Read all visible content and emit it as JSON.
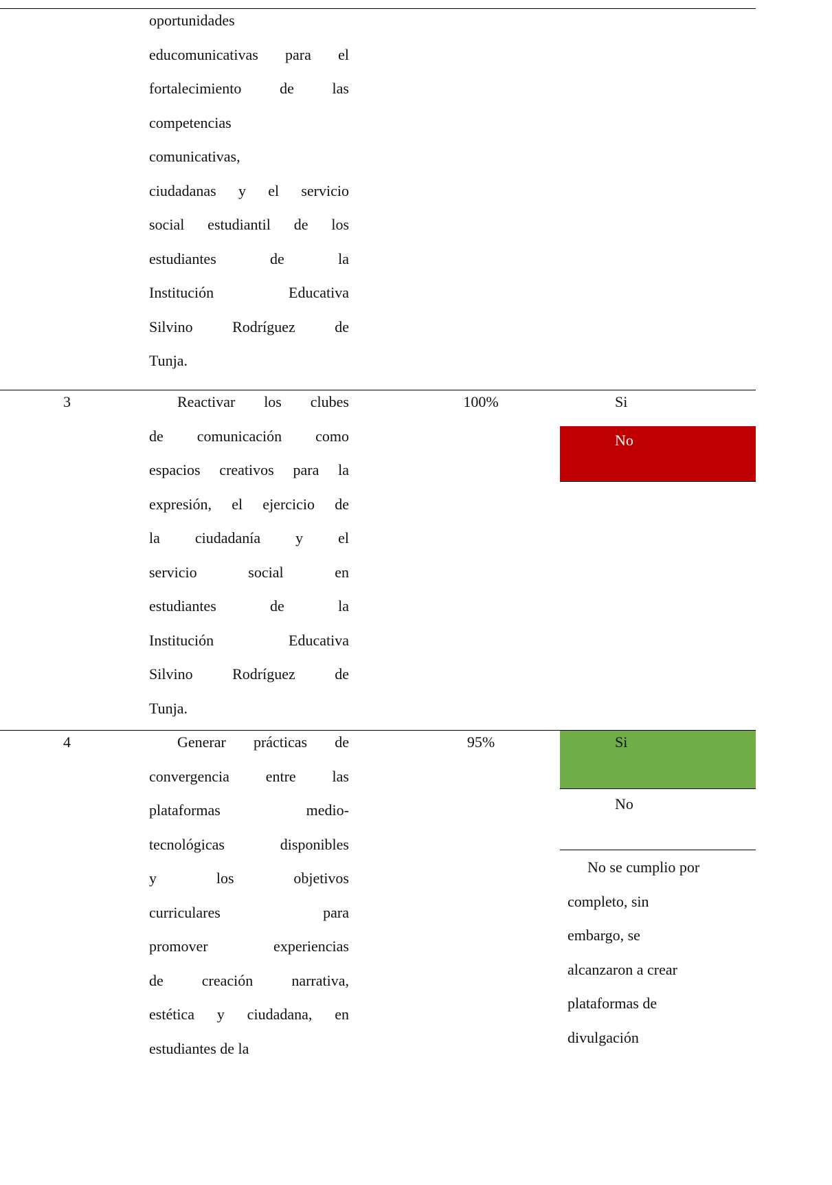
{
  "table": {
    "rows": [
      {
        "objective_lines": [
          "oportunidades",
          "educomunicativas para el",
          "fortalecimiento de las",
          "competencias",
          "comunicativas,",
          "ciudadanas y el servicio",
          "social estudiantil de los",
          "estudiantes de la",
          "Institución Educativa",
          "Silvino Rodríguez de",
          "Tunja."
        ]
      },
      {
        "number": "3",
        "objective_lines": [
          "Reactivar los clubes",
          "de comunicación como",
          "espacios creativos para la",
          "expresión, el ejercicio de",
          "la ciudadanía y el",
          "servicio social en",
          "estudiantes de la",
          "Institución Educativa",
          "Silvino Rodríguez de",
          "Tunja."
        ],
        "percent": "100%",
        "options": [
          "Si",
          "No"
        ]
      },
      {
        "number": "4",
        "objective_lines": [
          "Generar prácticas de",
          "convergencia entre las",
          "plataformas medio-",
          "tecnológicas disponibles",
          "y los objetivos",
          "curriculares para",
          "promover experiencias",
          "de creación narrativa,",
          "estética y ciudadana, en",
          "estudiantes de la"
        ],
        "percent": "95%",
        "options": [
          "Si",
          "No"
        ],
        "note_lines": [
          "No se cumplio por",
          "completo, sin",
          "embargo, se",
          "alcanzaron a crear",
          "plataformas de",
          "divulgación"
        ]
      }
    ]
  }
}
